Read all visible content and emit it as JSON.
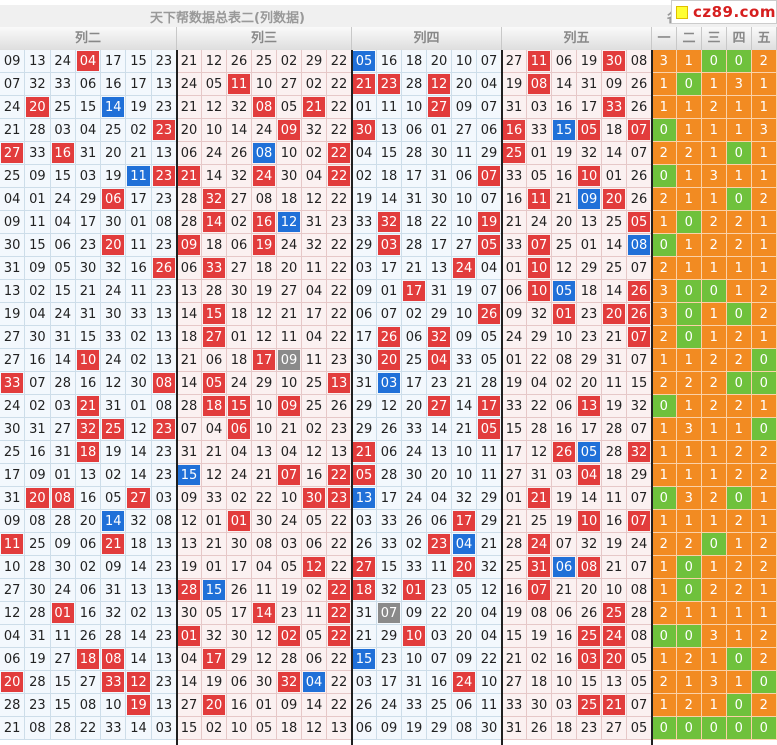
{
  "title": "天下帮数据总表二(列数据)",
  "right_title": "各",
  "watermark": "cz89.com",
  "groups": [
    {
      "label": "列二"
    },
    {
      "label": "列三"
    },
    {
      "label": "列四"
    },
    {
      "label": "列五"
    }
  ],
  "stat_headers": [
    "一",
    "二",
    "三",
    "四",
    "五"
  ],
  "colors": {
    "red": "#e23c3c",
    "blue": "#2070d8",
    "gray": "#8a8a8a",
    "orange": "#f28b22",
    "green": "#6fc13c"
  },
  "rows": [
    {
      "g": [
        "09 13 24 r04 17 15 23",
        "21 12 26 25 02 29 22",
        "b05 16 18 20 10 07",
        "27 r11 06 19 r30 08"
      ],
      "s": [
        "3o",
        "1o",
        "0g",
        "0g",
        "2o"
      ]
    },
    {
      "g": [
        "07 32 33 06 16 17 13",
        "24 05 r11 10 27 02 22",
        "r21 r23 28 r12 20 04",
        "19 r08 14 31 09 26"
      ],
      "s": [
        "1o",
        "0g",
        "1o",
        "3o",
        "1o"
      ]
    },
    {
      "g": [
        "24 r20 25 15 b14 19 23",
        "21 12 32 r08 05 r21 22",
        "01 11 10 r27 09 07",
        "31 03 16 17 r33 26"
      ],
      "s": [
        "1o",
        "1o",
        "2o",
        "1o",
        "1o"
      ]
    },
    {
      "g": [
        "21 28 03 04 25 02 r23",
        "20 10 14 24 r09 32 22",
        "r30 13 06 01 27 06",
        "r16 33 b15 r05 18 r07"
      ],
      "s": [
        "0g",
        "1o",
        "1o",
        "1o",
        "3o"
      ]
    },
    {
      "g": [
        "r27 33 r16 31 20 21 13",
        "06 24 26 b08 10 02 r22",
        "04 15 28 30 11 29",
        "r25 01 19 32 14 07"
      ],
      "s": [
        "2o",
        "2o",
        "1o",
        "0g",
        "1o"
      ]
    },
    {
      "g": [
        "25 09 15 03 19 b11 r23",
        "r21 14 32 r24 30 04 r22",
        "02 18 17 31 06 r07",
        "33 05 16 r10 01 26"
      ],
      "s": [
        "0g",
        "1o",
        "3o",
        "1o",
        "1o"
      ]
    },
    {
      "g": [
        "04 01 24 29 r06 17 23",
        "28 r32 27 08 18 12 22",
        "19 14 31 30 10 07",
        "16 r11 21 b09 r20 26"
      ],
      "s": [
        "2o",
        "1o",
        "1o",
        "0g",
        "2o"
      ]
    },
    {
      "g": [
        "09 11 04 17 30 01 08",
        "28 r14 02 r16 b12 31 23",
        "33 r32 18 22 10 r19",
        "21 24 20 13 25 r05"
      ],
      "s": [
        "1o",
        "0g",
        "2o",
        "2o",
        "1o"
      ]
    },
    {
      "g": [
        "30 15 06 23 r20 11 23",
        "r09 18 06 r19 24 32 22",
        "29 r03 28 17 27 r05",
        "33 r07 25 01 14 b08"
      ],
      "s": [
        "0g",
        "1o",
        "2o",
        "2o",
        "1o"
      ]
    },
    {
      "g": [
        "31 09 05 30 32 16 r26",
        "06 r33 27 18 20 11 22",
        "03 17 21 13 r24 04",
        "01 r10 12 29 25 07"
      ],
      "s": [
        "2o",
        "1o",
        "1o",
        "1o",
        "1o"
      ]
    },
    {
      "g": [
        "13 02 15 21 24 11 23",
        "13 28 30 19 27 04 22",
        "09 01 r17 31 19 07",
        "06 r10 b05 18 14 r26"
      ],
      "s": [
        "3o",
        "0g",
        "0g",
        "1o",
        "2o"
      ]
    },
    {
      "g": [
        "19 04 24 31 30 33 13",
        "14 r15 18 12 21 17 22",
        "06 07 02 29 10 r26",
        "09 32 r01 23 r20 r26"
      ],
      "s": [
        "3o",
        "0g",
        "1o",
        "0g",
        "2o"
      ]
    },
    {
      "g": [
        "27 30 31 15 33 02 13",
        "18 r27 01 12 11 04 22",
        "17 r26 06 r32 09 05",
        "24 29 10 23 21 r07"
      ],
      "s": [
        "2o",
        "0g",
        "1o",
        "2o",
        "1o"
      ]
    },
    {
      "g": [
        "27 16 14 r10 24 02 13",
        "21 06 18 r17 k09 11 23",
        "30 r20 25 r04 33 05",
        "01 22 08 29 31 07"
      ],
      "s": [
        "1o",
        "1o",
        "2o",
        "2o",
        "0g"
      ]
    },
    {
      "g": [
        "r33 07 28 16 12 30 r08",
        "14 r05 24 29 10 25 r13",
        "31 b03 17 23 21 28",
        "19 04 02 20 11 15"
      ],
      "s": [
        "2o",
        "2o",
        "2o",
        "0g",
        "0g"
      ]
    },
    {
      "g": [
        "24 02 03 r21 31 01 08",
        "28 r18 r15 10 r09 25 26",
        "29 12 20 r27 14 r17",
        "33 22 06 r13 19 32"
      ],
      "s": [
        "0g",
        "1o",
        "2o",
        "2o",
        "1o"
      ]
    },
    {
      "g": [
        "30 31 27 r32 r25 12 r23",
        "07 04 r06 10 21 02 23",
        "29 26 33 14 21 r05",
        "15 28 16 17 28 07"
      ],
      "s": [
        "1o",
        "3o",
        "1o",
        "1o",
        "0g"
      ]
    },
    {
      "g": [
        "25 16 31 r18 19 14 23",
        "31 21 04 13 04 12 13",
        "r21 06 24 13 10 11",
        "17 12 r26 b05 28 r32"
      ],
      "s": [
        "1o",
        "1o",
        "1o",
        "2o",
        "2o"
      ]
    },
    {
      "g": [
        "17 09 01 13 02 14 23",
        "b15 12 24 21 r07 16 r22",
        "r05 28 30 20 10 11",
        "27 31 03 r04 18 29"
      ],
      "s": [
        "1o",
        "1o",
        "1o",
        "2o",
        "2o"
      ]
    },
    {
      "g": [
        "31 r20 r08 16 05 r27 03",
        "09 33 02 22 10 r30 r23",
        "b13 17 24 04 32 29",
        "01 r21 19 14 11 07"
      ],
      "s": [
        "0g",
        "3o",
        "2o",
        "0g",
        "1o"
      ]
    },
    {
      "g": [
        "09 08 28 20 b14 32 08",
        "12 01 r01 30 24 05 22",
        "03 33 26 06 r17 29",
        "21 25 19 r10 16 r07"
      ],
      "s": [
        "1o",
        "1o",
        "1o",
        "2o",
        "1o"
      ]
    },
    {
      "g": [
        "r11 25 09 06 r21 18 13",
        "13 21 30 08 03 06 22",
        "26 33 02 r23 b04 21",
        "28 r24 07 32 19 24"
      ],
      "s": [
        "2o",
        "2o",
        "0g",
        "1o",
        "2o"
      ]
    },
    {
      "g": [
        "10 28 30 02 09 14 23",
        "19 01 17 04 05 r12 22",
        "r27 15 33 11 r20 32",
        "25 r31 b06 r08 21 07"
      ],
      "s": [
        "1o",
        "0g",
        "1o",
        "2o",
        "2o"
      ]
    },
    {
      "g": [
        "27 30 24 06 31 13 13",
        "r28 b15 26 11 19 02 r22",
        "r18 32 r01 23 05 12",
        "16 r07 21 20 10 08"
      ],
      "s": [
        "1o",
        "0g",
        "2o",
        "2o",
        "1o"
      ]
    },
    {
      "g": [
        "12 28 r01 16 32 02 13",
        "30 05 17 r14 23 11 r22",
        "31 k07 09 22 20 04",
        "19 08 06 26 r25 28"
      ],
      "s": [
        "2o",
        "1o",
        "1o",
        "1o",
        "1o"
      ]
    },
    {
      "g": [
        "04 31 11 26 28 14 23",
        "r01 32 30 12 r02 05 r22",
        "21 29 r10 03 20 04",
        "15 19 16 r25 r24 08"
      ],
      "s": [
        "0g",
        "0g",
        "3o",
        "1o",
        "2o"
      ]
    },
    {
      "g": [
        "06 19 27 r18 r08 14 13",
        "04 r17 29 12 28 06 22",
        "b15 23 10 07 09 22",
        "21 02 16 r03 r20 05"
      ],
      "s": [
        "1o",
        "2o",
        "1o",
        "0g",
        "2o"
      ]
    },
    {
      "g": [
        "r20 28 15 27 r33 r12 23",
        "14 19 06 30 r32 b04 22",
        "03 17 31 16 r24 10",
        "27 18 10 15 13 05"
      ],
      "s": [
        "2o",
        "1o",
        "3o",
        "1o",
        "0g"
      ]
    },
    {
      "g": [
        "28 23 15 08 10 r19 13",
        "27 r20 16 01 09 14 22",
        "26 24 33 25 06 11",
        "33 30 03 r25 r21 07"
      ],
      "s": [
        "1o",
        "2o",
        "1o",
        "0g",
        "2o"
      ]
    },
    {
      "g": [
        "21 08 28 22 33 14 03",
        "15 02 10 05 18 12 13",
        "06 09 19 29 08 30",
        "31 26 18 23 27 05"
      ],
      "s": [
        "0g",
        "0g",
        "0g",
        "0g",
        "0g"
      ]
    }
  ]
}
